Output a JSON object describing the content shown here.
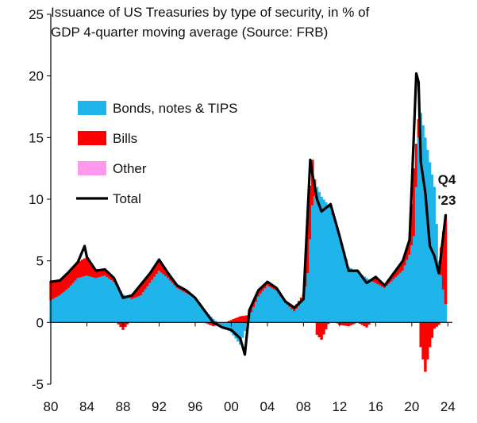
{
  "chart_data": {
    "type": "area",
    "title": "Issuance of US Treasuries by type of security, in % of GDP 4-quarter moving average (Source: FRB)",
    "title_lines": [
      "Issuance of US Treasuries by type of security, in % of",
      "GDP 4-quarter moving average (Source: FRB)"
    ],
    "xlabel": "",
    "ylabel": "",
    "xlim": [
      1980,
      2024.5
    ],
    "ylim": [
      -5,
      25
    ],
    "x_ticks": [
      1980,
      1984,
      1988,
      1992,
      1996,
      2000,
      2004,
      2008,
      2012,
      2016,
      2020,
      2024
    ],
    "x_tick_labels": [
      "80",
      "84",
      "88",
      "92",
      "96",
      "00",
      "04",
      "08",
      "12",
      "16",
      "20",
      "24"
    ],
    "y_ticks": [
      -5,
      0,
      5,
      10,
      15,
      20,
      25
    ],
    "y_tick_labels": [
      "-5",
      "0",
      "5",
      "10",
      "15",
      "20",
      "25"
    ],
    "grid": false,
    "legend_position": "upper-left",
    "colors": {
      "bonds": "#1fb4ea",
      "bills": "#ff0000",
      "other": "#ff99ee",
      "total": "#000000"
    },
    "legend": [
      {
        "key": "bonds",
        "label": "Bonds, notes & TIPS",
        "kind": "box"
      },
      {
        "key": "bills",
        "label": "Bills",
        "kind": "box"
      },
      {
        "key": "other",
        "label": "Other",
        "kind": "box"
      },
      {
        "key": "total",
        "label": "Total",
        "kind": "line"
      }
    ],
    "annotation": {
      "lines": [
        "Q4",
        "'23"
      ],
      "x": 2023.75,
      "y": 8.7
    },
    "series": [
      {
        "name": "Bonds, notes & TIPS",
        "key": "bonds",
        "x": [
          1980,
          1981,
          1982,
          1983,
          1984,
          1985,
          1986,
          1987,
          1988,
          1989,
          1990,
          1991,
          1992,
          1993,
          1994,
          1995,
          1996,
          1997,
          1998,
          1999,
          2000,
          2001,
          2002,
          2003,
          2004,
          2005,
          2006,
          2007,
          2008,
          2008.5,
          2009,
          2009.5,
          2010,
          2011,
          2012,
          2013,
          2014,
          2015,
          2016,
          2017,
          2018,
          2019,
          2019.75,
          2020.25,
          2020.75,
          2021,
          2021.5,
          2022,
          2022.5,
          2023,
          2023.75
        ],
        "values": [
          1.8,
          2.2,
          2.8,
          3.6,
          3.8,
          3.6,
          3.8,
          3.3,
          2.3,
          1.9,
          2.2,
          3.2,
          4.2,
          3.6,
          2.8,
          2.4,
          2.0,
          1.0,
          0.3,
          -0.3,
          -0.8,
          -1.8,
          0.4,
          2.1,
          3.0,
          2.6,
          1.6,
          0.9,
          1.8,
          4.0,
          9.5,
          11.0,
          10.2,
          9.3,
          7.0,
          4.5,
          4.1,
          3.6,
          3.2,
          2.8,
          3.5,
          4.2,
          5.5,
          7.0,
          15.0,
          17.0,
          15.0,
          13.0,
          11.0,
          5.0,
          1.5
        ]
      },
      {
        "name": "Bills",
        "key": "bills",
        "x": [
          1980,
          1981,
          1982,
          1983,
          1984,
          1985,
          1986,
          1987,
          1988,
          1989,
          1990,
          1991,
          1992,
          1993,
          1994,
          1995,
          1996,
          1997,
          1998,
          1999,
          2000,
          2001,
          2002,
          2003,
          2004,
          2005,
          2006,
          2007,
          2008,
          2008.5,
          2009,
          2009.5,
          2010,
          2011,
          2012,
          2013,
          2014,
          2015,
          2016,
          2017,
          2018,
          2019,
          2019.75,
          2020.25,
          2020.75,
          2021,
          2021.5,
          2022,
          2022.5,
          2023,
          2023.75
        ],
        "values": [
          1.5,
          1.2,
          1.3,
          1.3,
          1.5,
          0.6,
          0.5,
          0.3,
          -0.6,
          0.3,
          0.9,
          0.8,
          0.9,
          0.4,
          0.2,
          0.2,
          0.0,
          0.0,
          -0.3,
          -0.1,
          0.2,
          0.5,
          0.6,
          0.5,
          0.3,
          0.2,
          0.1,
          0.3,
          0.5,
          5.0,
          3.7,
          -1.0,
          -1.4,
          0.3,
          -0.2,
          -0.3,
          0.0,
          -0.4,
          0.5,
          0.2,
          0.5,
          0.8,
          1.2,
          5.5,
          1.5,
          -2.0,
          -4.0,
          -2.0,
          -0.5,
          -0.2,
          7.2
        ]
      },
      {
        "name": "Total",
        "key": "total",
        "x": [
          1980,
          1981,
          1982,
          1983,
          1983.75,
          1984,
          1985,
          1986,
          1987,
          1988,
          1989,
          1990,
          1991,
          1992,
          1993,
          1994,
          1995,
          1996,
          1997,
          1998,
          1999,
          2000,
          2001,
          2001.5,
          2002,
          2003,
          2004,
          2005,
          2006,
          2007,
          2008,
          2008.75,
          2009,
          2009.5,
          2010,
          2011,
          2012,
          2013,
          2014,
          2015,
          2016,
          2017,
          2018,
          2019,
          2019.75,
          2020,
          2020.5,
          2020.75,
          2021,
          2021.5,
          2022,
          2022.5,
          2023,
          2023.75
        ],
        "values": [
          3.3,
          3.4,
          4.1,
          4.9,
          6.2,
          5.3,
          4.2,
          4.3,
          3.6,
          2.0,
          2.2,
          3.1,
          4.0,
          5.1,
          4.0,
          3.0,
          2.6,
          2.0,
          1.0,
          0.0,
          -0.4,
          -0.6,
          -1.3,
          -2.6,
          1.0,
          2.6,
          3.3,
          2.8,
          1.7,
          1.2,
          1.9,
          13.2,
          12.0,
          10.0,
          9.0,
          9.6,
          7.0,
          4.2,
          4.2,
          3.2,
          3.7,
          3.0,
          4.0,
          5.0,
          6.7,
          11.0,
          20.2,
          19.5,
          13.0,
          10.5,
          6.2,
          5.4,
          4.0,
          8.7
        ]
      }
    ]
  }
}
